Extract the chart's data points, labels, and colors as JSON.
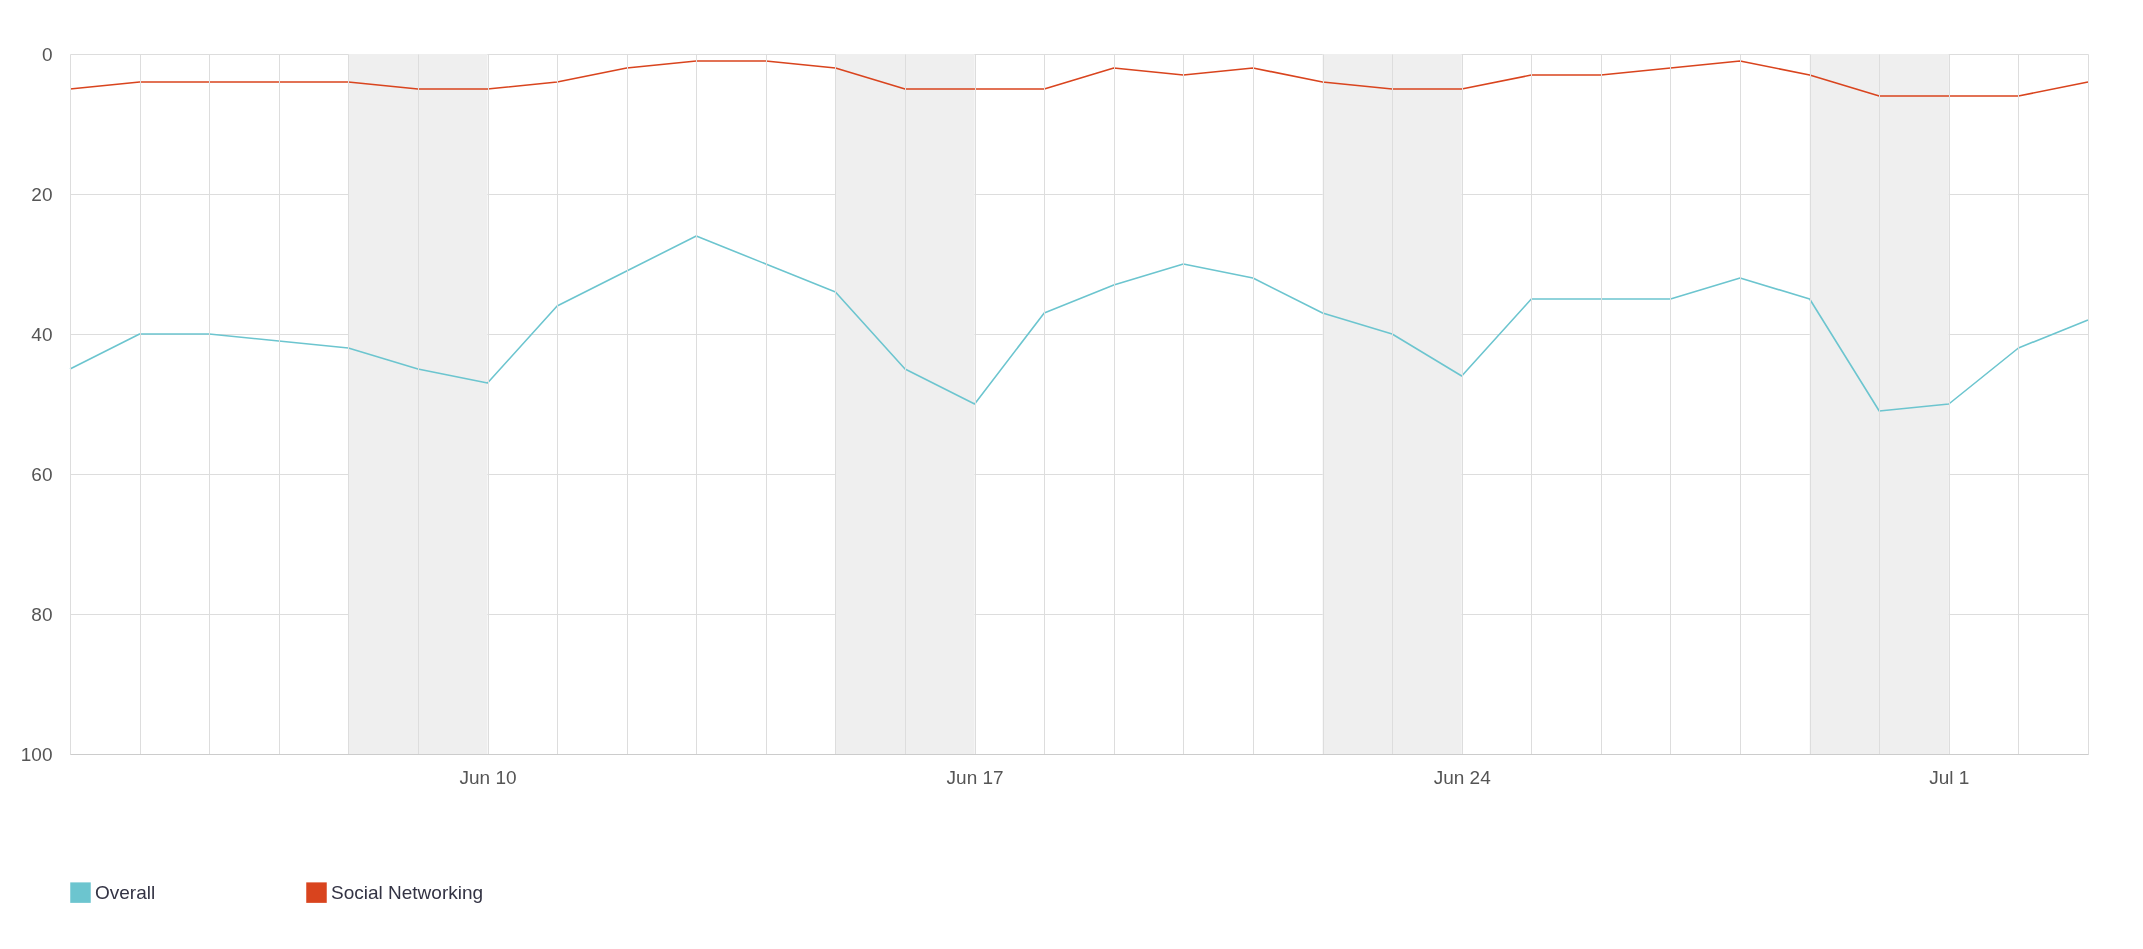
{
  "chart_data": {
    "type": "line",
    "x": [
      "--06-04",
      "--06-05",
      "--06-06",
      "--06-07",
      "--06-08",
      "--06-09",
      "--06-10",
      "--06-11",
      "--06-12",
      "--06-13",
      "--06-14",
      "--06-15",
      "--06-16",
      "--06-17",
      "--06-18",
      "--06-19",
      "--06-20",
      "--06-21",
      "--06-22",
      "--06-23",
      "--06-24",
      "--06-25",
      "--06-26",
      "--06-27",
      "--06-28",
      "--06-29",
      "--06-30",
      "--07-01",
      "--07-02",
      "--07-03"
    ],
    "series": [
      {
        "name": "Overall",
        "color": "#6cc5cf",
        "values": [
          45,
          40,
          40,
          41,
          42,
          45,
          47,
          36,
          31,
          26,
          30,
          34,
          45,
          50,
          37,
          33,
          30,
          32,
          37,
          40,
          46,
          35,
          35,
          35,
          32,
          35,
          51,
          50,
          42,
          38
        ]
      },
      {
        "name": "Social Networking",
        "color": "#d9441e",
        "values": [
          5,
          4,
          4,
          4,
          4,
          5,
          5,
          4,
          2,
          1,
          1,
          2,
          5,
          5,
          5,
          2,
          3,
          2,
          4,
          5,
          5,
          3,
          3,
          2,
          1,
          3,
          6,
          6,
          6,
          4
        ]
      }
    ],
    "xlim": [
      "--06-04",
      "--07-03"
    ],
    "xticks": [
      {
        "value": "--06-04",
        "label": null
      },
      {
        "value": "--06-05",
        "label": null
      },
      {
        "value": "--06-06",
        "label": null
      },
      {
        "value": "--06-07",
        "label": null
      },
      {
        "value": "--06-08",
        "label": null
      },
      {
        "value": "--06-09",
        "label": null
      },
      {
        "value": "--06-10",
        "label": "Jun 10"
      },
      {
        "value": "--06-11",
        "label": null
      },
      {
        "value": "--06-12",
        "label": null
      },
      {
        "value": "--06-13",
        "label": null
      },
      {
        "value": "--06-14",
        "label": null
      },
      {
        "value": "--06-15",
        "label": null
      },
      {
        "value": "--06-16",
        "label": null
      },
      {
        "value": "--06-17",
        "label": "Jun 17"
      },
      {
        "value": "--06-18",
        "label": null
      },
      {
        "value": "--06-19",
        "label": null
      },
      {
        "value": "--06-20",
        "label": null
      },
      {
        "value": "--06-21",
        "label": null
      },
      {
        "value": "--06-22",
        "label": null
      },
      {
        "value": "--06-23",
        "label": null
      },
      {
        "value": "--06-24",
        "label": "Jun 24"
      },
      {
        "value": "--06-25",
        "label": null
      },
      {
        "value": "--06-26",
        "label": null
      },
      {
        "value": "--06-27",
        "label": null
      },
      {
        "value": "--06-28",
        "label": null
      },
      {
        "value": "--06-29",
        "label": null
      },
      {
        "value": "--06-30",
        "label": null
      },
      {
        "value": "--07-01",
        "label": "Jul 1"
      },
      {
        "value": "--07-02",
        "label": null
      },
      {
        "value": "--07-03",
        "label": null
      }
    ],
    "ylim": [
      100,
      0
    ],
    "yticks": [
      0,
      20,
      40,
      60,
      80,
      100
    ],
    "bands": [
      {
        "axis": "x",
        "from": "--06-08",
        "to": "--06-10",
        "color": "#efefef"
      },
      {
        "axis": "x",
        "from": "--06-15",
        "to": "--06-17",
        "color": "#efefef"
      },
      {
        "axis": "x",
        "from": "--06-22",
        "to": "--06-24",
        "color": "#efefef"
      },
      {
        "axis": "x",
        "from": "--06-29",
        "to": "--07-01",
        "color": "#efefef"
      }
    ],
    "grid": true,
    "legend": "bottom left",
    "marker": "none",
    "line_style": "solid"
  }
}
